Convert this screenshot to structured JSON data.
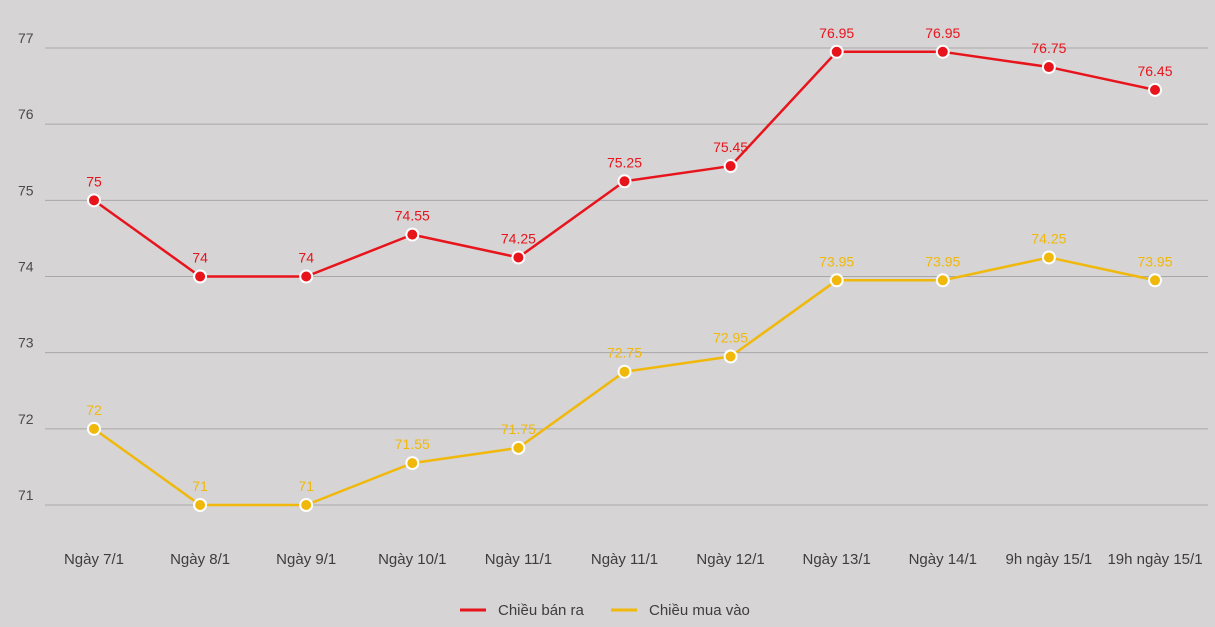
{
  "chart_data": {
    "type": "line",
    "title": "",
    "xlabel": "",
    "ylabel": "",
    "categories": [
      "Ngày 7/1",
      "Ngày 8/1",
      "Ngày 9/1",
      "Ngày 10/1",
      "Ngày 11/1",
      "Ngày 11/1",
      "Ngày 12/1",
      "Ngày 13/1",
      "Ngày 14/1",
      "9h ngày 15/1",
      "19h ngày 15/1"
    ],
    "ylim": [
      71,
      77
    ],
    "yticks": [
      71,
      72,
      73,
      74,
      75,
      76,
      77
    ],
    "grid": true,
    "legend_position": "bottom-center",
    "series": [
      {
        "name": "Chiều bán ra",
        "color": "#e8141c",
        "values": [
          75,
          74,
          74,
          74.55,
          74.25,
          75.25,
          75.45,
          76.95,
          76.95,
          76.75,
          76.45
        ],
        "labels": [
          "75",
          "74",
          "74",
          "74.55",
          "74.25",
          "75.25",
          "75.45",
          "76.95",
          "76.95",
          "76.75",
          "76.45"
        ]
      },
      {
        "name": "Chiều mua vào",
        "color": "#f0b80a",
        "values": [
          72,
          71,
          71,
          71.55,
          71.75,
          72.75,
          72.95,
          73.95,
          73.95,
          74.25,
          73.95
        ],
        "labels": [
          "72",
          "71",
          "71",
          "71.55",
          "71.75",
          "72.75",
          "72.95",
          "73.95",
          "73.95",
          "74.25",
          "73.95"
        ]
      }
    ]
  }
}
